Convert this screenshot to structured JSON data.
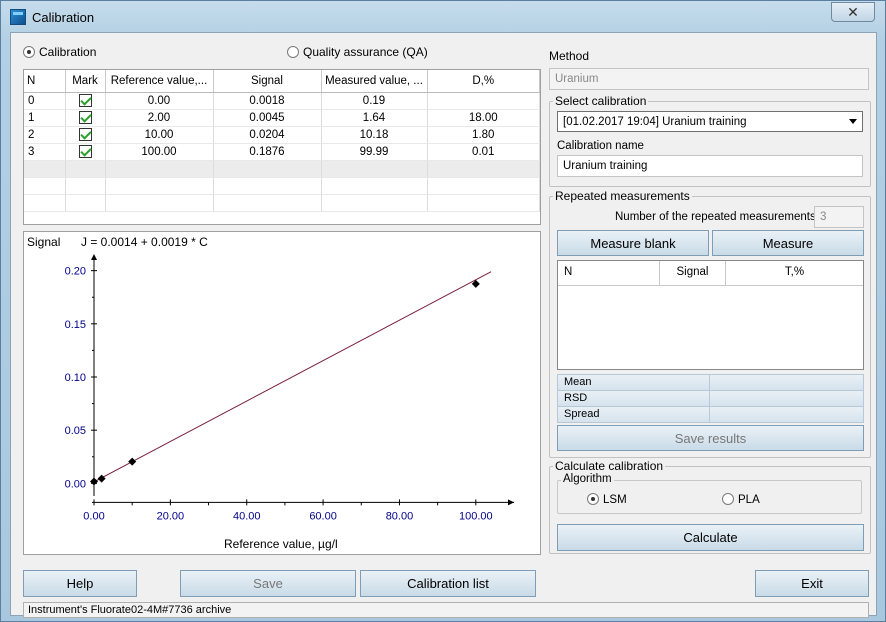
{
  "window": {
    "title": "Calibration",
    "close_glyph": "✕"
  },
  "mode": {
    "calibration_label": "Calibration",
    "qa_label": "Quality assurance (QA)",
    "selected": "calibration"
  },
  "cal_table": {
    "columns": [
      "N",
      "Mark",
      "Reference value,...",
      "Signal",
      "Measured value, ...",
      "D,%"
    ],
    "rows": [
      {
        "n": "0",
        "mark": true,
        "ref": "0.00",
        "signal": "0.0018",
        "measured": "0.19",
        "d": ""
      },
      {
        "n": "1",
        "mark": true,
        "ref": "2.00",
        "signal": "0.0045",
        "measured": "1.64",
        "d": "18.00"
      },
      {
        "n": "2",
        "mark": true,
        "ref": "10.00",
        "signal": "0.0204",
        "measured": "10.18",
        "d": "1.80"
      },
      {
        "n": "3",
        "mark": true,
        "ref": "100.00",
        "signal": "0.1876",
        "measured": "99.99",
        "d": "0.01"
      }
    ]
  },
  "chart_data": {
    "type": "scatter",
    "title": "J = 0.0014 + 0.0019 * C",
    "ylabel": "Signal",
    "xlabel": "Reference value, µg/l",
    "xlim": [
      0,
      110
    ],
    "ylim": [
      -0.01,
      0.21
    ],
    "x_ticks": [
      "0.00",
      "20.00",
      "40.00",
      "60.00",
      "80.00",
      "100.00"
    ],
    "y_ticks": [
      "0.00",
      "0.05",
      "0.10",
      "0.15",
      "0.20"
    ],
    "x_tick_values": [
      0,
      20,
      40,
      60,
      80,
      100
    ],
    "y_tick_values": [
      0,
      0.05,
      0.1,
      0.15,
      0.2
    ],
    "points": [
      {
        "x": 0,
        "y": 0.0018
      },
      {
        "x": 2,
        "y": 0.0045
      },
      {
        "x": 10,
        "y": 0.0204
      },
      {
        "x": 100,
        "y": 0.1876
      }
    ],
    "fit": {
      "intercept": 0.0014,
      "slope": 0.0019,
      "x_range": [
        0,
        104
      ]
    },
    "line_color": "#7a1f3d",
    "marker_color": "#000000"
  },
  "method": {
    "label": "Method",
    "value": "Uranium"
  },
  "select_calibration": {
    "label": "Select calibration",
    "selected": "[01.02.2017 19:04] Uranium training",
    "name_label": "Calibration name",
    "name_value": "Uranium training"
  },
  "repeated": {
    "label": "Repeated measurements",
    "count_label": "Number of the repeated measurements",
    "count_value": "3",
    "measure_blank": "Measure blank",
    "measure": "Measure",
    "columns": [
      "N",
      "Signal",
      "T,%"
    ],
    "stats": [
      "Mean",
      "RSD",
      "Spread"
    ],
    "save_results": "Save results"
  },
  "calculate": {
    "label": "Calculate calibration",
    "algorithm_label": "Algorithm",
    "lsm": "LSM",
    "pla": "PLA",
    "selected": "LSM",
    "button": "Calculate"
  },
  "footer": {
    "help": "Help",
    "save": "Save",
    "calibration_list": "Calibration list",
    "exit": "Exit",
    "status": "Instrument's Fluorate02-4M#7736 archive"
  }
}
